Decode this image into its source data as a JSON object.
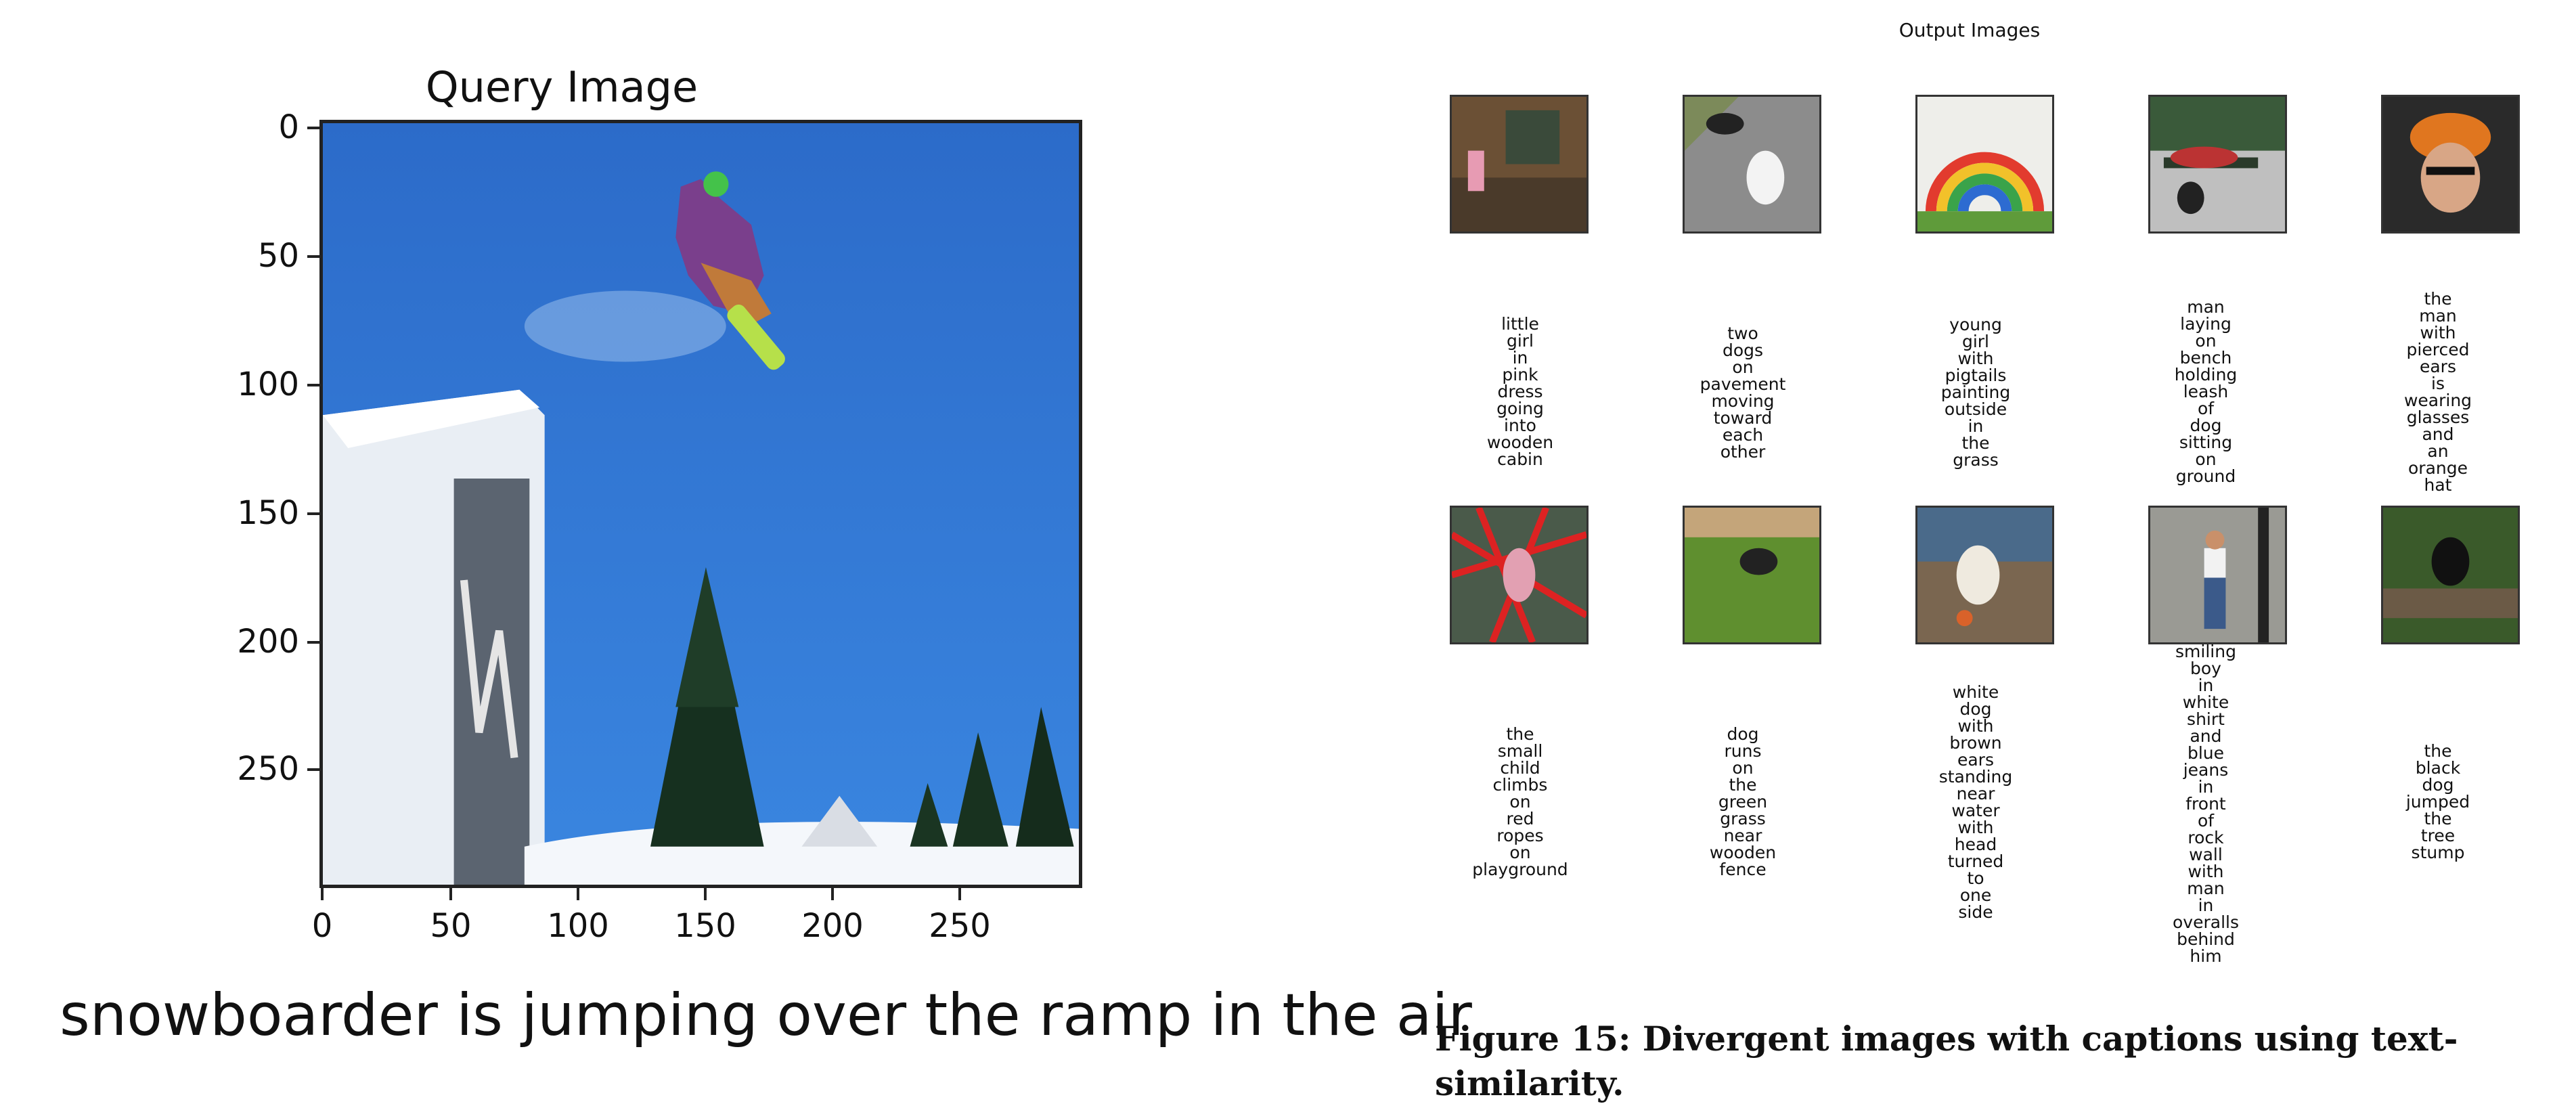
{
  "query": {
    "title": "Query Image",
    "yticks": [
      "0",
      "50",
      "100",
      "150",
      "200",
      "250"
    ],
    "xticks": [
      "0",
      "50",
      "100",
      "150",
      "200",
      "250"
    ],
    "caption": "snowboarder is jumping over the ramp in the air"
  },
  "outputs": {
    "title": "Output Images",
    "items": [
      {
        "caption": "little\ngirl\nin\npink\ndress\ngoing\ninto\nwooden\ncabin",
        "scene": "cabin"
      },
      {
        "caption": "two\ndogs\non\npavement\nmoving\ntoward\neach\nother",
        "scene": "dogs-road"
      },
      {
        "caption": "young\ngirl\nwith\npigtails\npainting\noutside\nin\nthe\ngrass",
        "scene": "rainbow"
      },
      {
        "caption": "man\nlaying\non\nbench\nholding\nleash\nof\ndog\nsitting\non\nground",
        "scene": "bench"
      },
      {
        "caption": "the\nman\nwith\npierced\nears\nis\nwearing\nglasses\nand\nan\norange\nhat",
        "scene": "man-hat"
      },
      {
        "caption": "the\nsmall\nchild\nclimbs\non\nred\nropes\non\nplayground",
        "scene": "ropes"
      },
      {
        "caption": "dog\nruns\non\nthe\ngreen\ngrass\nnear\nwooden\nfence",
        "scene": "dog-grass"
      },
      {
        "caption": "white\ndog\nwith\nbrown\nears\nstanding\nnear\nwater\nwith\nhead\nturned\nto\none\nside",
        "scene": "dog-water"
      },
      {
        "caption": "smiling\nboy\nin\nwhite\nshirt\nand\nblue\njeans\nin\nfront\nof\nrock\nwall\nwith\nman\nin\noveralls\nbehind\nhim",
        "scene": "boy-wall"
      },
      {
        "caption": "the\nblack\ndog\njumped\nthe\ntree\nstump",
        "scene": "dog-stump"
      }
    ]
  },
  "figure": {
    "caption": "Figure 15: Divergent images with captions using text-similarity."
  }
}
